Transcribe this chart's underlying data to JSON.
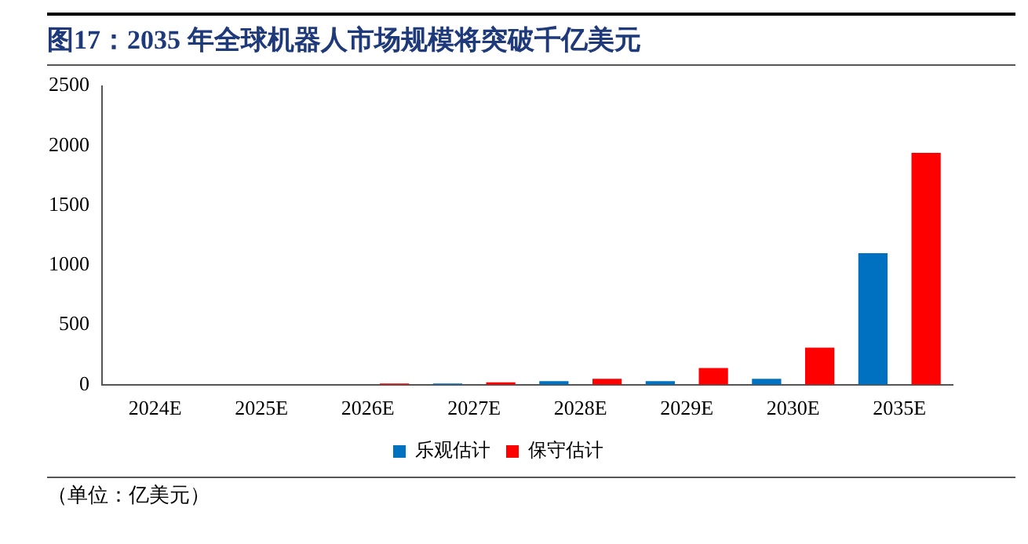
{
  "chart_data": {
    "type": "bar",
    "title": "图17：2035 年全球机器人市场规模将突破千亿美元",
    "categories": [
      "2024E",
      "2025E",
      "2026E",
      "2027E",
      "2028E",
      "2029E",
      "2030E",
      "2035E"
    ],
    "series": [
      {
        "name": "乐观估计",
        "color": "#0070c0",
        "values": [
          0,
          0,
          0,
          10,
          30,
          30,
          50,
          1100
        ]
      },
      {
        "name": "保守估计",
        "color": "#ff0000",
        "values": [
          0,
          0,
          10,
          20,
          50,
          140,
          310,
          1940
        ]
      }
    ],
    "ylim": [
      0,
      2500
    ],
    "yticks": [
      0,
      500,
      1000,
      1500,
      2000,
      2500
    ],
    "grid": false,
    "legend": "bottom",
    "annotations": [
      "（单位：亿美元）"
    ]
  }
}
